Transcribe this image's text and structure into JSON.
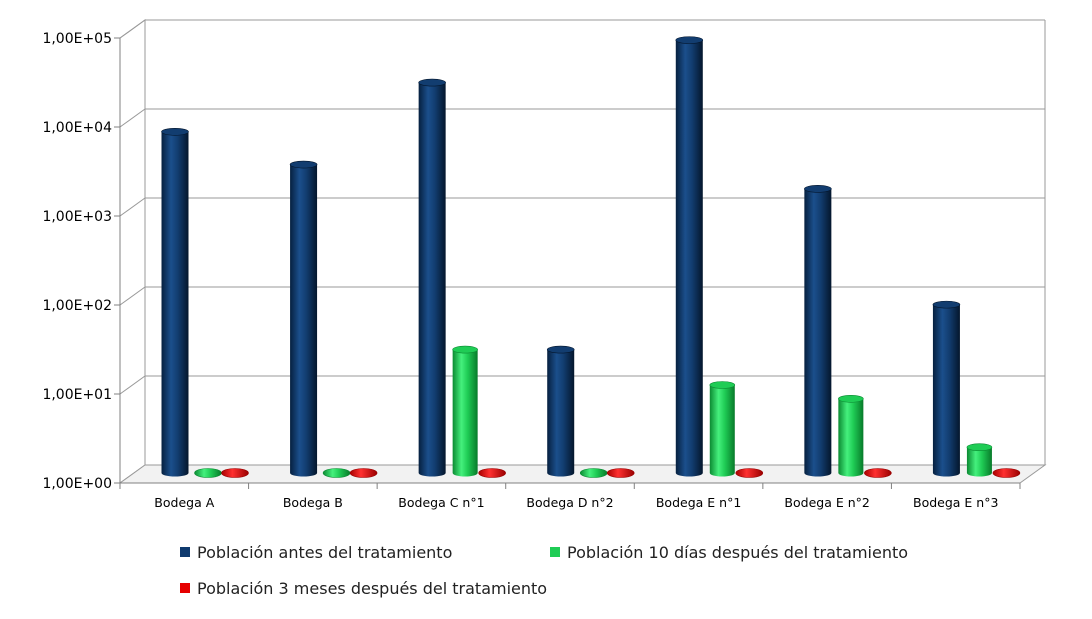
{
  "chart_data": {
    "type": "bar",
    "title": "",
    "xlabel": "",
    "ylabel": "",
    "y_scale": "log",
    "ylim": [
      1,
      100000
    ],
    "y_ticks": [
      "1,00E+00",
      "1,00E+01",
      "1,00E+02",
      "1,00E+03",
      "1,00E+04",
      "1,00E+05"
    ],
    "grid": true,
    "legend_position": "bottom",
    "categories": [
      "Bodega A",
      "Bodega B",
      "Bodega C n°1",
      "Bodega D n°2",
      "Bodega E n°1",
      "Bodega E n°2",
      "Bodega E n°3"
    ],
    "series": [
      {
        "name": "Población antes del tratamiento",
        "color": "#0f3a6e",
        "values": [
          7000,
          3000,
          25000,
          25,
          75000,
          1600,
          80
        ]
      },
      {
        "name": "Población 10 días después del tratamiento",
        "color": "#1fcc55",
        "values": [
          1,
          1,
          25,
          1,
          10,
          7,
          2
        ]
      },
      {
        "name": "Población 3 meses después del tratamiento",
        "color": "#e60000",
        "values": [
          1,
          1,
          1,
          1,
          1,
          1,
          1
        ]
      }
    ]
  }
}
